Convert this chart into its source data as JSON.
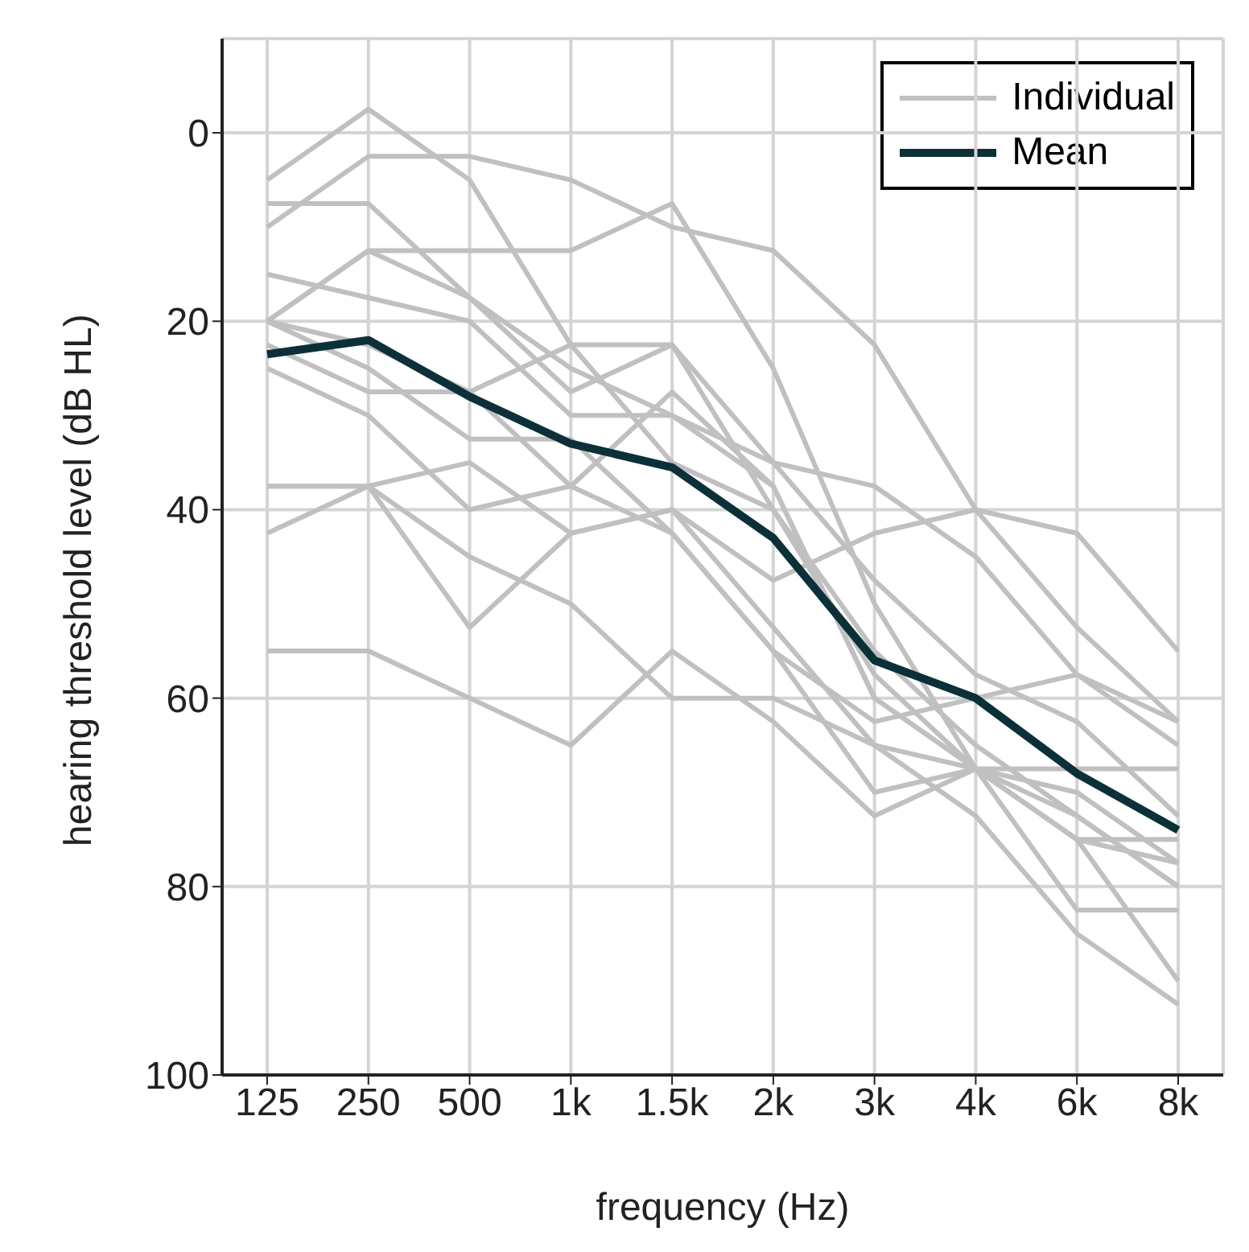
{
  "chart_data": {
    "type": "line",
    "xlabel": "frequency (Hz)",
    "ylabel": "hearing threshold level (dB HL)",
    "categories": [
      "125",
      "250",
      "500",
      "1k",
      "1.5k",
      "2k",
      "3k",
      "4k",
      "6k",
      "8k"
    ],
    "ylim": [
      100,
      -10
    ],
    "yticks": [
      0,
      20,
      40,
      60,
      80,
      100
    ],
    "grid": true,
    "legend": "top right",
    "marker": "none",
    "line_style": "solid",
    "series": [
      {
        "name": "Individual",
        "color": "#c0c0c0",
        "values": [
          5,
          -2.5,
          5,
          22.5,
          35,
          40,
          55,
          65,
          72.5,
          80
        ]
      },
      {
        "color": "#c0c0c0",
        "values": [
          10,
          2.5,
          2.5,
          5,
          10,
          12.5,
          22.5,
          40,
          52.5,
          62.5
        ]
      },
      {
        "color": "#c0c0c0",
        "values": [
          7.5,
          7.5,
          17.5,
          25,
          30,
          37.5,
          60,
          67.5,
          75,
          77.5
        ]
      },
      {
        "color": "#c0c0c0",
        "values": [
          20,
          12.5,
          12.5,
          12.5,
          7.5,
          25,
          50,
          67.5,
          75,
          75
        ]
      },
      {
        "color": "#c0c0c0",
        "values": [
          15,
          17.5,
          20,
          30,
          30,
          35,
          37.5,
          45,
          57.5,
          65
        ]
      },
      {
        "color": "#c0c0c0",
        "values": [
          20,
          12.5,
          17.5,
          27.5,
          22.5,
          40,
          57.5,
          67.5,
          67.5,
          67.5
        ]
      },
      {
        "color": "#c0c0c0",
        "values": [
          20,
          22.5,
          27.5,
          22.5,
          22.5,
          35,
          47.5,
          57.5,
          62.5,
          72.5
        ]
      },
      {
        "color": "#c0c0c0",
        "values": [
          22.5,
          27.5,
          27.5,
          37.5,
          27.5,
          37.5,
          60,
          67.5,
          82.5,
          82.5
        ]
      },
      {
        "color": "#c0c0c0",
        "values": [
          25,
          30,
          40,
          37.5,
          42.5,
          55,
          62.5,
          60,
          57.5,
          62.5
        ]
      },
      {
        "color": "#c0c0c0",
        "values": [
          37.5,
          37.5,
          35,
          42.5,
          40,
          52.5,
          65,
          72.5,
          85,
          92.5
        ]
      },
      {
        "color": "#c0c0c0",
        "values": [
          42.5,
          37.5,
          45,
          50,
          60,
          60,
          65,
          67.5,
          75,
          90
        ]
      },
      {
        "color": "#c0c0c0",
        "values": [
          55,
          55,
          60,
          65,
          55,
          62.5,
          72.5,
          67.5,
          70,
          77.5
        ]
      },
      {
        "color": "#c0c0c0",
        "values": [
          20,
          25,
          32.5,
          32.5,
          42.5,
          55,
          70,
          67.5,
          72.5,
          80
        ]
      },
      {
        "color": "#c0c0c0",
        "values": [
          37.5,
          37.5,
          52.5,
          42.5,
          40,
          47.5,
          42.5,
          40,
          42.5,
          55
        ]
      },
      {
        "name": "Mean",
        "color": "#0b3038",
        "values": [
          23.5,
          22,
          28,
          33,
          35.5,
          43,
          56,
          60,
          68,
          74
        ]
      }
    ]
  }
}
